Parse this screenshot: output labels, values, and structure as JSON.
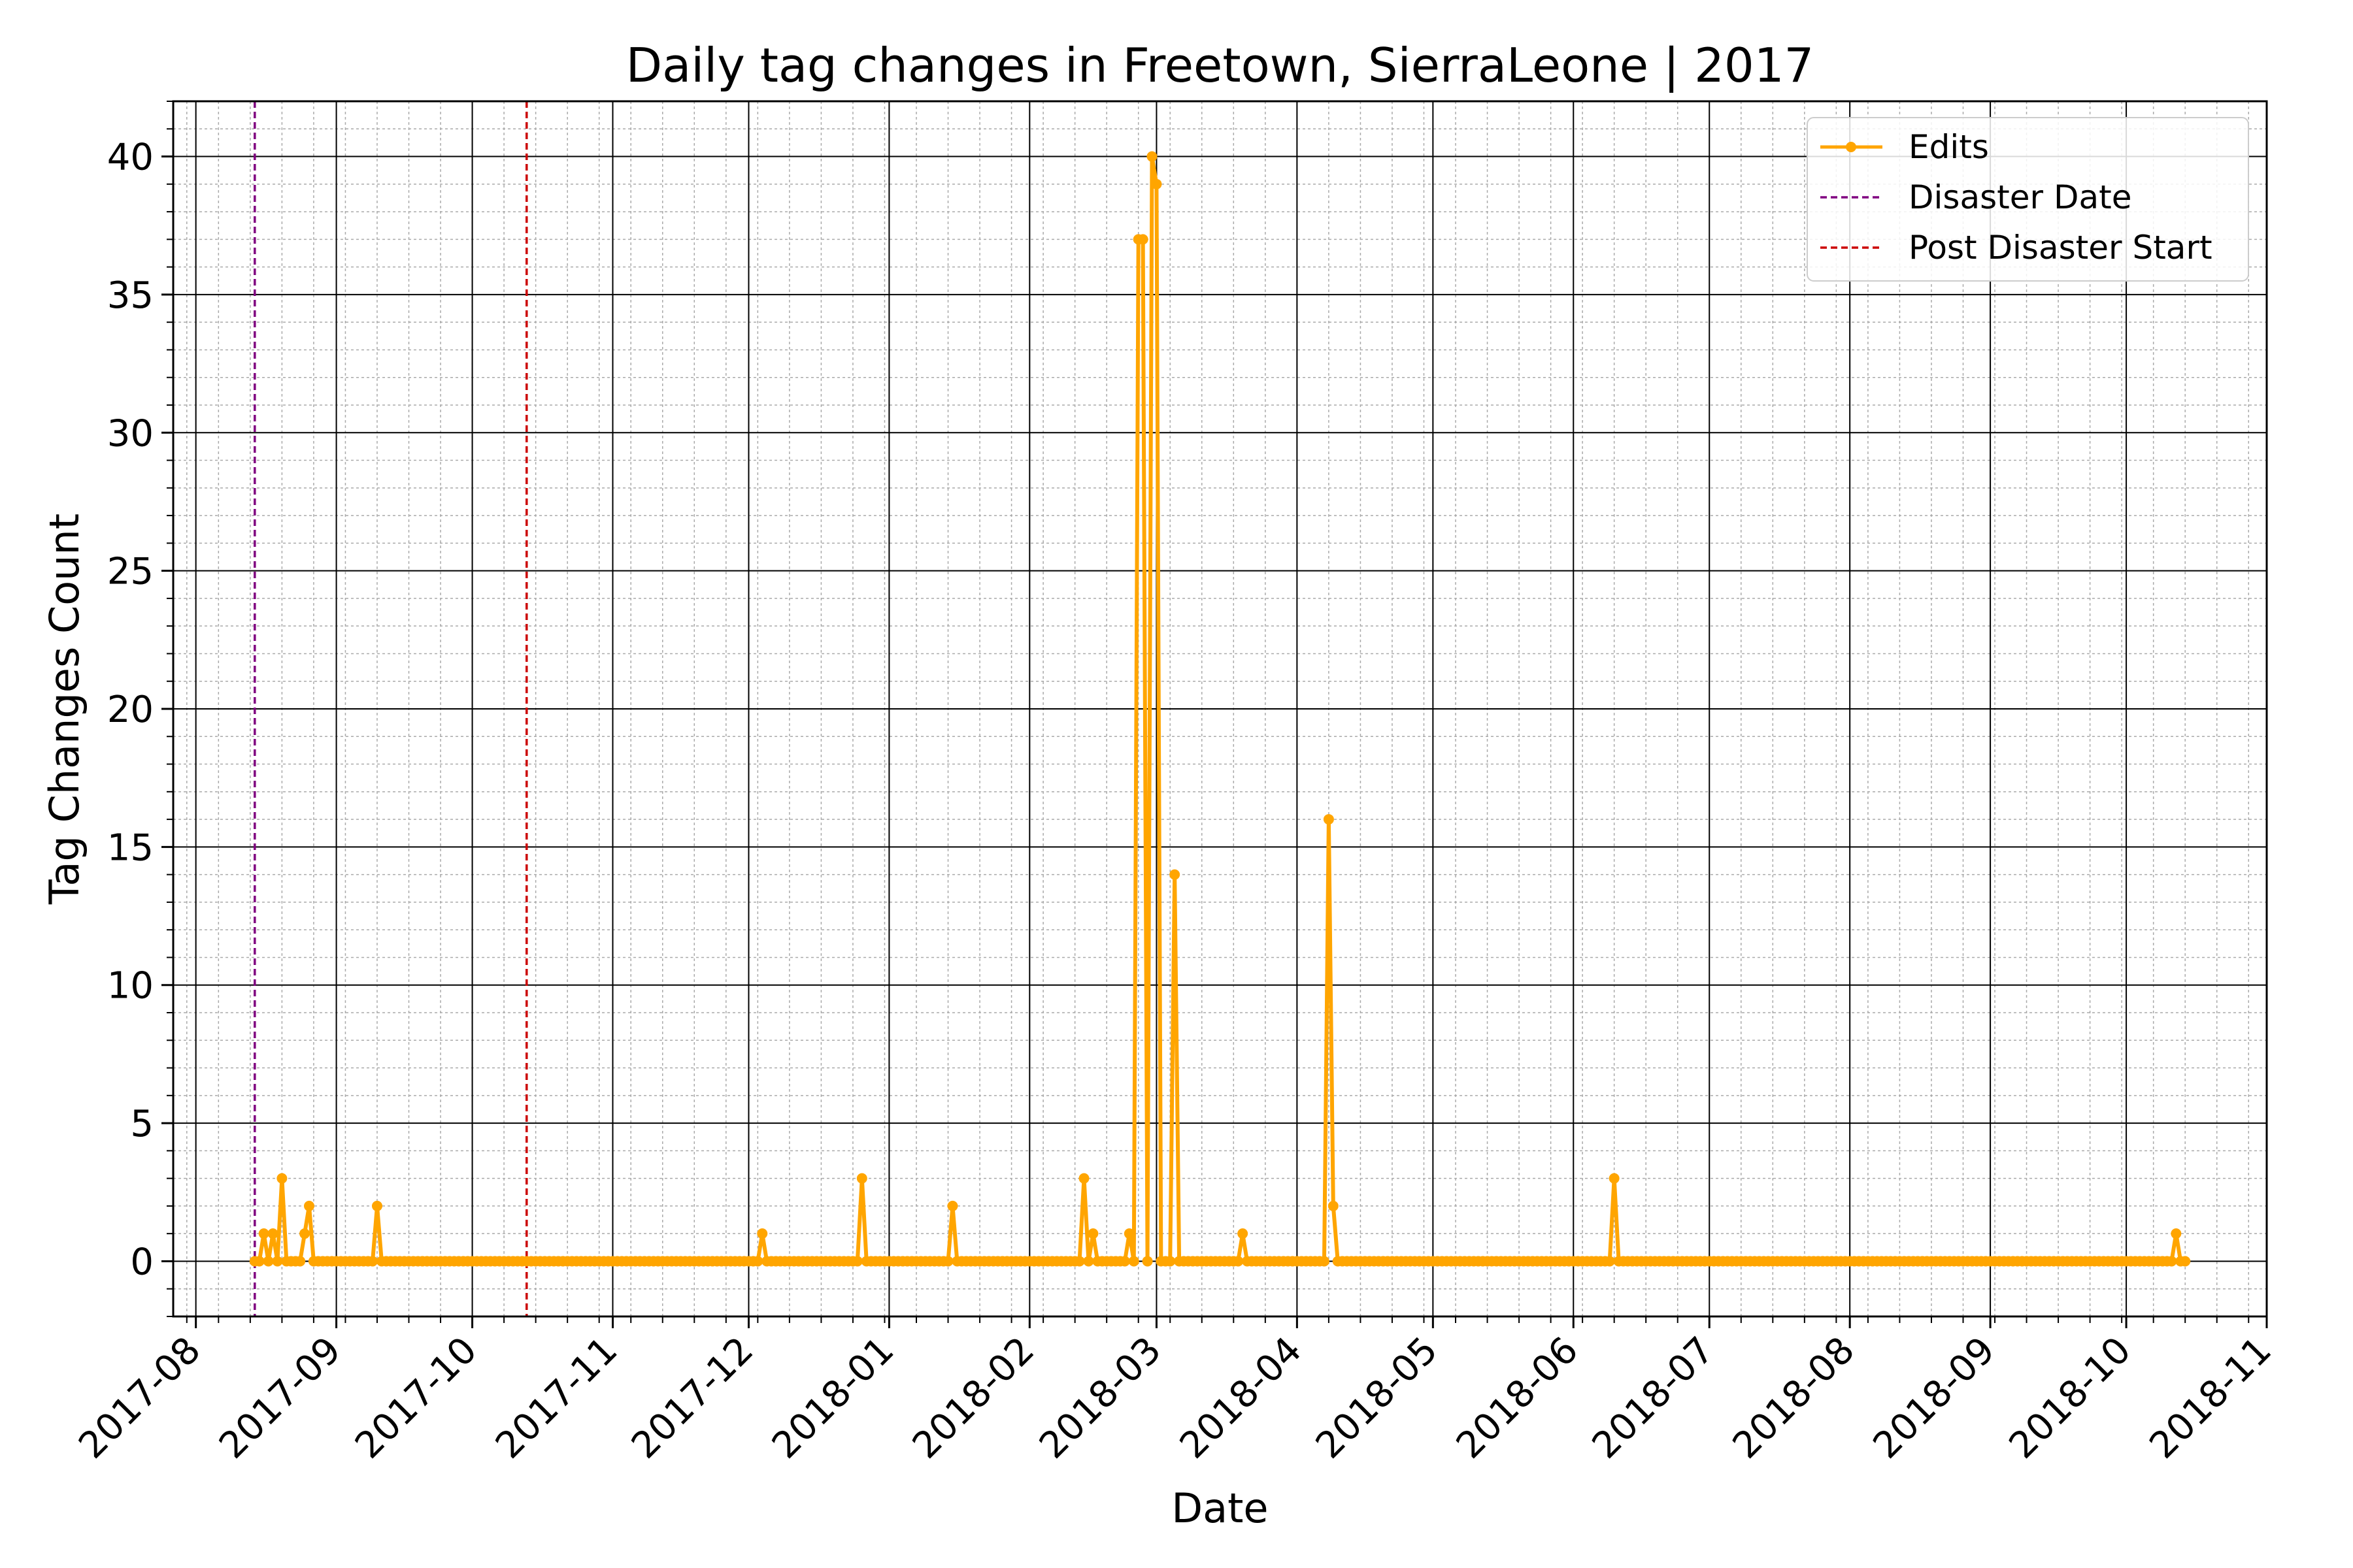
{
  "chart_data": {
    "type": "line",
    "title": "Daily tag changes in Freetown, SierraLeone | 2017",
    "xlabel": "Date",
    "ylabel": "Tag Changes Count",
    "x_axis": "date",
    "xlim": [
      "2017-07-27",
      "2018-11-01"
    ],
    "ylim": [
      -2,
      42
    ],
    "grid": true,
    "minor_grid": true,
    "legend_position": "top-right",
    "x_ticks": [
      "2017-08-01",
      "2017-09-01",
      "2017-10-01",
      "2017-11-01",
      "2017-12-01",
      "2018-01-01",
      "2018-02-01",
      "2018-03-01",
      "2018-04-01",
      "2018-05-01",
      "2018-06-01",
      "2018-07-01",
      "2018-08-01",
      "2018-09-01",
      "2018-10-01",
      "2018-11-01"
    ],
    "x_tick_labels": [
      "2017-08",
      "2017-09",
      "2017-10",
      "2017-11",
      "2017-12",
      "2018-01",
      "2018-02",
      "2018-03",
      "2018-04",
      "2018-05",
      "2018-06",
      "2018-07",
      "2018-08",
      "2018-09",
      "2018-10",
      "2018-11"
    ],
    "y_ticks": [
      0,
      5,
      10,
      15,
      20,
      25,
      30,
      35,
      40
    ],
    "y_tick_labels": [
      "0",
      "5",
      "10",
      "15",
      "20",
      "25",
      "30",
      "35",
      "40"
    ],
    "series": [
      {
        "name": "Edits",
        "color": "#FFA500",
        "marker": "circle",
        "range_start": "2017-08-14",
        "range_end": "2018-10-14",
        "default_value": 0,
        "points": [
          [
            "2017-08-16",
            1
          ],
          [
            "2017-08-18",
            1
          ],
          [
            "2017-08-20",
            3
          ],
          [
            "2017-08-25",
            1
          ],
          [
            "2017-08-26",
            2
          ],
          [
            "2017-09-10",
            2
          ],
          [
            "2017-12-04",
            1
          ],
          [
            "2017-12-26",
            3
          ],
          [
            "2018-01-15",
            2
          ],
          [
            "2018-02-13",
            3
          ],
          [
            "2018-02-15",
            1
          ],
          [
            "2018-02-23",
            1
          ],
          [
            "2018-02-25",
            37
          ],
          [
            "2018-02-26",
            37
          ],
          [
            "2018-02-28",
            40
          ],
          [
            "2018-03-01",
            39
          ],
          [
            "2018-03-05",
            14
          ],
          [
            "2018-03-20",
            1
          ],
          [
            "2018-04-08",
            16
          ],
          [
            "2018-04-09",
            2
          ],
          [
            "2018-06-10",
            3
          ],
          [
            "2018-10-12",
            1
          ]
        ]
      }
    ],
    "vertical_lines": [
      {
        "name": "Disaster Date",
        "date": "2017-08-14",
        "color": "#800080",
        "style": "dashed"
      },
      {
        "name": "Post Disaster Start",
        "date": "2017-10-13",
        "color": "#CC0000",
        "style": "dashed"
      }
    ]
  }
}
